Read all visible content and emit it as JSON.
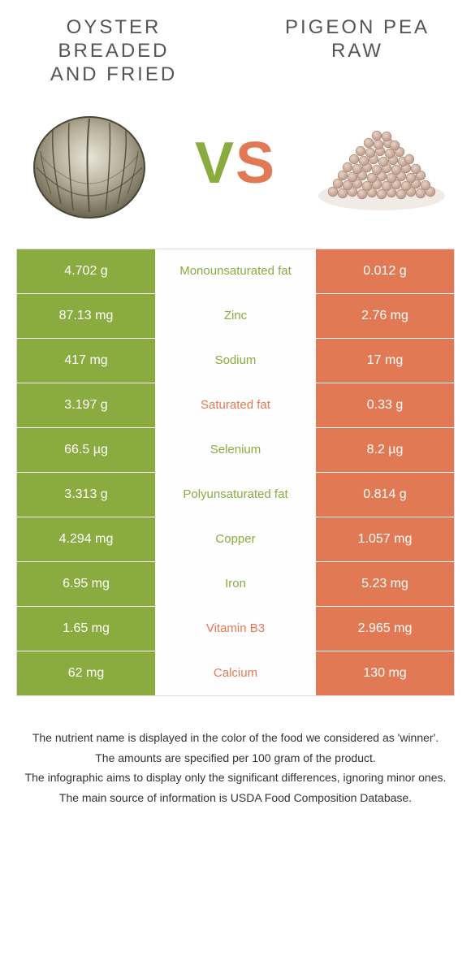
{
  "titles": {
    "left": "OYSTER BREADED AND FRIED",
    "right": "PIGEON PEA RAW"
  },
  "colors": {
    "left_bg": "#8aab3f",
    "right_bg": "#e17a54",
    "left_text": "#8aab3f",
    "right_text": "#e17a54",
    "mid_bg": "#ffffff",
    "border": "#dddddd"
  },
  "vs": {
    "v": "V",
    "s": "S"
  },
  "rows": [
    {
      "left": "4.702 g",
      "mid": "Monounsaturated fat",
      "right": "0.012 g",
      "winner": "left"
    },
    {
      "left": "87.13 mg",
      "mid": "Zinc",
      "right": "2.76 mg",
      "winner": "left"
    },
    {
      "left": "417 mg",
      "mid": "Sodium",
      "right": "17 mg",
      "winner": "left"
    },
    {
      "left": "3.197 g",
      "mid": "Saturated fat",
      "right": "0.33 g",
      "winner": "right"
    },
    {
      "left": "66.5 µg",
      "mid": "Selenium",
      "right": "8.2 µg",
      "winner": "left"
    },
    {
      "left": "3.313 g",
      "mid": "Polyunsaturated fat",
      "right": "0.814 g",
      "winner": "left"
    },
    {
      "left": "4.294 mg",
      "mid": "Copper",
      "right": "1.057 mg",
      "winner": "left"
    },
    {
      "left": "6.95 mg",
      "mid": "Iron",
      "right": "5.23 mg",
      "winner": "left"
    },
    {
      "left": "1.65 mg",
      "mid": "Vitamin B3",
      "right": "2.965 mg",
      "winner": "right"
    },
    {
      "left": "62 mg",
      "mid": "Calcium",
      "right": "130 mg",
      "winner": "right"
    }
  ],
  "footer": [
    "The nutrient name is displayed in the color of the food we considered as 'winner'.",
    "The amounts are specified per 100 gram of the product.",
    "The infographic aims to display only the significant differences, ignoring minor ones.",
    "The main source of information is USDA Food Composition Database."
  ]
}
